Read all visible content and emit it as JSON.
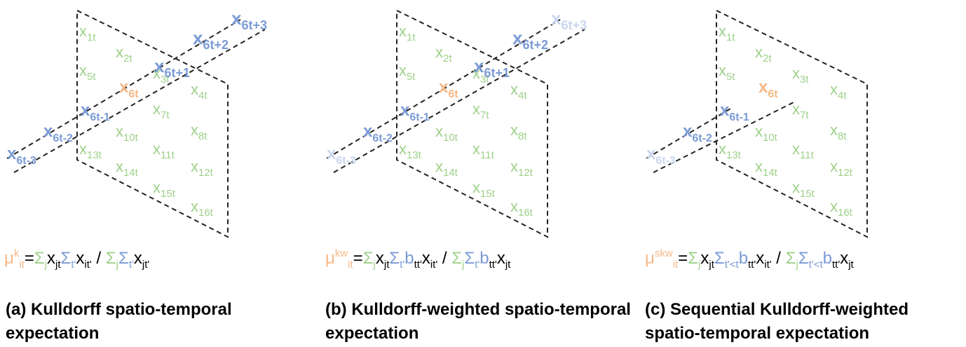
{
  "colors": {
    "spatial": "#9fd18a",
    "time": "#7b9bd6",
    "time_faded": "#c9d6ee",
    "target": "#f5b886",
    "line": "#222222"
  },
  "panels": [
    {
      "id": "a",
      "caption": "(a) Kulldorff spatio-temporal expectation",
      "cells": [
        {
          "label": "x",
          "sub": "1t"
        },
        {
          "label": "x",
          "sub": "2t"
        },
        {
          "label": "x",
          "sub": "3t"
        },
        {
          "label": "x",
          "sub": "4t"
        },
        {
          "label": "x",
          "sub": "5t"
        },
        {
          "label": "x",
          "sub": "7t"
        },
        {
          "label": "x",
          "sub": "8t"
        },
        {
          "label": "x",
          "sub": "10t"
        },
        {
          "label": "x",
          "sub": "11t"
        },
        {
          "label": "x",
          "sub": "12t"
        },
        {
          "label": "x",
          "sub": "13t"
        },
        {
          "label": "x",
          "sub": "14t"
        },
        {
          "label": "x",
          "sub": "15t"
        },
        {
          "label": "x",
          "sub": "16t"
        }
      ],
      "target": {
        "label": "x",
        "sub": "6t"
      },
      "timeline": [
        {
          "label": "x",
          "sub": "6t-3"
        },
        {
          "label": "x",
          "sub": "6t-2"
        },
        {
          "label": "x",
          "sub": "6t-1"
        },
        {
          "label": "x",
          "sub": "6t+1"
        },
        {
          "label": "x",
          "sub": "6t+2"
        },
        {
          "label": "x",
          "sub": "6t+3"
        }
      ]
    },
    {
      "id": "b",
      "caption": "(b) Kulldorff-weighted spatio-temporal expectation",
      "cells": [
        {
          "label": "x",
          "sub": "1t"
        },
        {
          "label": "x",
          "sub": "2t"
        },
        {
          "label": "x",
          "sub": "3t"
        },
        {
          "label": "x",
          "sub": "4t"
        },
        {
          "label": "x",
          "sub": "5t"
        },
        {
          "label": "x",
          "sub": "7t"
        },
        {
          "label": "x",
          "sub": "8t"
        },
        {
          "label": "x",
          "sub": "10t"
        },
        {
          "label": "x",
          "sub": "11t"
        },
        {
          "label": "x",
          "sub": "12t"
        },
        {
          "label": "x",
          "sub": "13t"
        },
        {
          "label": "x",
          "sub": "14t"
        },
        {
          "label": "x",
          "sub": "15t"
        },
        {
          "label": "x",
          "sub": "16t"
        }
      ],
      "target": {
        "label": "x",
        "sub": "6t"
      },
      "timeline": [
        {
          "label": "x",
          "sub": "6t-3"
        },
        {
          "label": "x",
          "sub": "6t-2"
        },
        {
          "label": "x",
          "sub": "6t-1"
        },
        {
          "label": "x",
          "sub": "6t+1"
        },
        {
          "label": "x",
          "sub": "6t+2"
        },
        {
          "label": "x",
          "sub": "6t+3"
        }
      ]
    },
    {
      "id": "c",
      "caption": "(c) Sequential Kulldorff-weighted spatio-temporal expectation",
      "cells": [
        {
          "label": "x",
          "sub": "1t"
        },
        {
          "label": "x",
          "sub": "2t"
        },
        {
          "label": "x",
          "sub": "3t"
        },
        {
          "label": "x",
          "sub": "4t"
        },
        {
          "label": "x",
          "sub": "5t"
        },
        {
          "label": "x",
          "sub": "7t"
        },
        {
          "label": "x",
          "sub": "8t"
        },
        {
          "label": "x",
          "sub": "10t"
        },
        {
          "label": "x",
          "sub": "11t"
        },
        {
          "label": "x",
          "sub": "12t"
        },
        {
          "label": "x",
          "sub": "13t"
        },
        {
          "label": "x",
          "sub": "14t"
        },
        {
          "label": "x",
          "sub": "15t"
        },
        {
          "label": "x",
          "sub": "16t"
        }
      ],
      "target": {
        "label": "x",
        "sub": "6t"
      },
      "timeline": [
        {
          "label": "x",
          "sub": "6t-3"
        },
        {
          "label": "x",
          "sub": "6t-2"
        },
        {
          "label": "x",
          "sub": "6t-1"
        }
      ]
    }
  ],
  "formulas": {
    "a": {
      "mu": "μ",
      "mu_sup": "k",
      "mu_sub": "it",
      "eq": "=",
      "s1": "Σ",
      "s1_sub": "j",
      "x1": "x",
      "x1_sub": "jt",
      "s2": "Σ",
      "s2_sub": "t'",
      "x2": "x",
      "x2_sub": "it'",
      "div": " / ",
      "s3": "Σ",
      "s3_sub": "j",
      "s4": "Σ",
      "s4_sub": "t'",
      "x3": "x",
      "x3_sub": "jt'"
    },
    "b": {
      "mu": "μ",
      "mu_sup": "kw",
      "mu_sub": "it",
      "eq": "=",
      "s1": "Σ",
      "s1_sub": "j",
      "x1": "x",
      "x1_sub": "jt",
      "s2": "Σ",
      "s2_sub": "t'",
      "b1": "b",
      "b1_sub": "tt'",
      "x2": "x",
      "x2_sub": "it'",
      "div": " / ",
      "s3": "Σ",
      "s3_sub": "j",
      "s4": "Σ",
      "s4_sub": "t'",
      "b2": "b",
      "b2_sub": "tt'",
      "x3": "x",
      "x3_sub": "jt"
    },
    "c": {
      "mu": "μ",
      "mu_sup": "skw",
      "mu_sub": "it",
      "eq": "=",
      "s1": "Σ",
      "s1_sub": "j",
      "x1": "x",
      "x1_sub": "jt",
      "s2": "Σ",
      "s2_sub": "t'<t",
      "b1": "b",
      "b1_sub": "tt'",
      "x2": "x",
      "x2_sub": "it'",
      "div": " / ",
      "s3": "Σ",
      "s3_sub": "j",
      "s4": "Σ",
      "s4_sub": "t'<t",
      "b2": "b",
      "b2_sub": "tt'",
      "x3": "x",
      "x3_sub": "jt"
    }
  }
}
